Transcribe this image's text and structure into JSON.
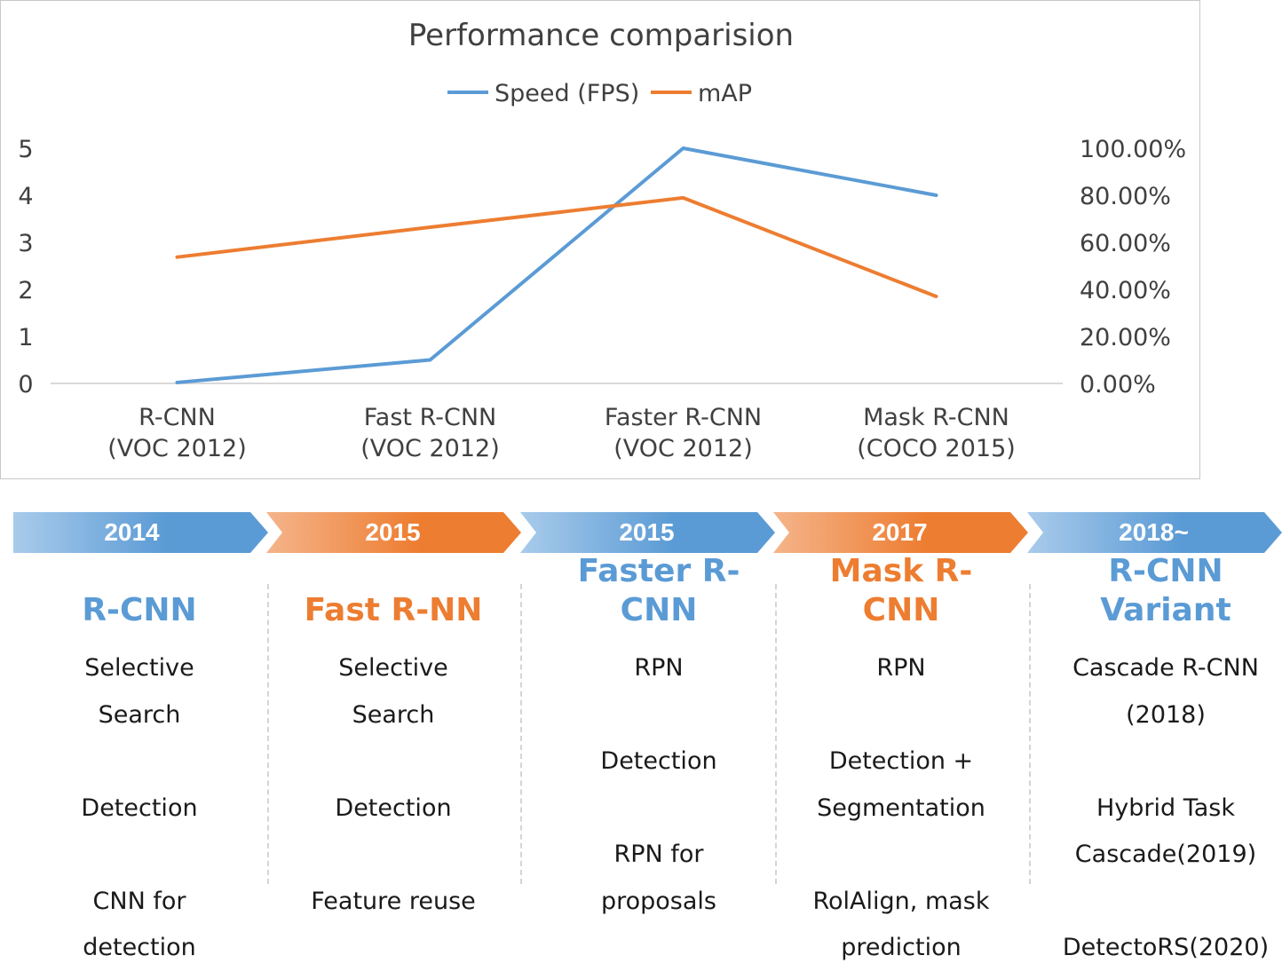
{
  "chart_data": {
    "type": "line",
    "title": "Performance comparision",
    "categories": [
      "R-CNN\n(VOC 2012)",
      "Fast R-CNN\n(VOC 2012)",
      "Faster R-CNN\n(VOC 2012)",
      "Mask R-CNN\n(COCO 2015)"
    ],
    "series": [
      {
        "name": "Speed (FPS)",
        "axis": "left",
        "color": "#5B9BD5",
        "values": [
          0.02,
          0.5,
          5,
          4
        ]
      },
      {
        "name": "mAP",
        "axis": "right",
        "color": "#ED7D31",
        "values": [
          0.537,
          0.664,
          0.789,
          0.37
        ]
      }
    ],
    "y_left": {
      "ticks": [
        "0",
        "1",
        "2",
        "3",
        "4",
        "5"
      ],
      "range": [
        0,
        5
      ]
    },
    "y_right": {
      "ticks": [
        "0.00%",
        "20.00%",
        "40.00%",
        "60.00%",
        "80.00%",
        "100.00%"
      ],
      "range": [
        0,
        1
      ]
    },
    "legend_position": "top",
    "grid": false
  },
  "timeline": [
    {
      "year": "2014",
      "color": "blue",
      "title": "R-CNN",
      "lines": [
        "Selective",
        "Search",
        "",
        "Detection",
        "",
        "CNN for",
        "detection"
      ]
    },
    {
      "year": "2015",
      "color": "orange",
      "title": "Fast R-NN",
      "lines": [
        "Selective",
        "Search",
        "",
        "Detection",
        "",
        "Feature reuse"
      ]
    },
    {
      "year": "2015",
      "color": "blue",
      "title": "Faster R-\nCNN",
      "lines": [
        "RPN",
        "",
        "Detection",
        "",
        "RPN for",
        "proposals"
      ]
    },
    {
      "year": "2017",
      "color": "orange",
      "title": "Mask R-\nCNN",
      "lines": [
        "RPN",
        "",
        "Detection +",
        "Segmentation",
        "",
        "RolAlign, mask",
        "prediction"
      ]
    },
    {
      "year": "2018~",
      "color": "blue",
      "title": "R-CNN\nVariant",
      "lines": [
        "Cascade R-CNN",
        "(2018)",
        "",
        "Hybrid Task",
        "Cascade(2019)",
        "",
        "DetectoRS(2020)"
      ]
    }
  ],
  "colors": {
    "blue": "#5B9BD5",
    "orange": "#ED7D31",
    "blue_light": "#A9CBEB",
    "orange_light": "#F5B48A"
  }
}
